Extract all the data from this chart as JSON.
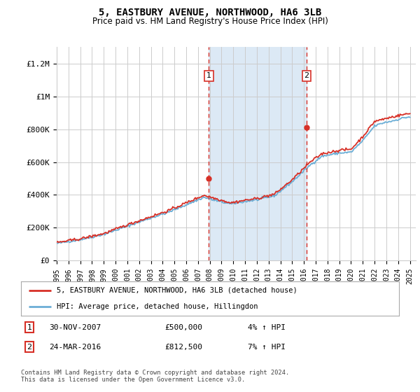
{
  "title": "5, EASTBURY AVENUE, NORTHWOOD, HA6 3LB",
  "subtitle": "Price paid vs. HM Land Registry's House Price Index (HPI)",
  "ylim": [
    0,
    1300000
  ],
  "yticks": [
    0,
    200000,
    400000,
    600000,
    800000,
    1000000,
    1200000
  ],
  "ytick_labels": [
    "£0",
    "£200K",
    "£400K",
    "£600K",
    "£800K",
    "£1M",
    "£1.2M"
  ],
  "hpi_color": "#6baed6",
  "price_color": "#d73027",
  "marker1_year": 2007.917,
  "marker1_price": 500000,
  "marker1_label": "30-NOV-2007",
  "marker1_amount": "£500,000",
  "marker1_hpi": "4% ↑ HPI",
  "marker2_year": 2016.23,
  "marker2_price": 812500,
  "marker2_label": "24-MAR-2016",
  "marker2_amount": "£812,500",
  "marker2_hpi": "7% ↑ HPI",
  "legend_address": "5, EASTBURY AVENUE, NORTHWOOD, HA6 3LB (detached house)",
  "legend_hpi": "HPI: Average price, detached house, Hillingdon",
  "footer": "Contains HM Land Registry data © Crown copyright and database right 2024.\nThis data is licensed under the Open Government Licence v3.0.",
  "background_color": "#ffffff",
  "plot_bg_color": "#ffffff",
  "shade_color": "#dce9f5"
}
